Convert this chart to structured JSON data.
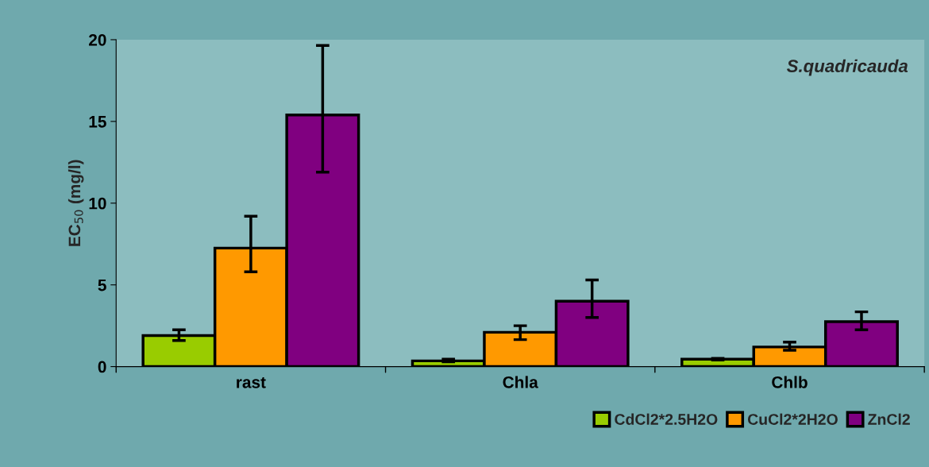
{
  "chart_data": {
    "type": "bar",
    "ylabel": "EC$_{50}$ (mg/l)",
    "annotations": [
      "S.quadricauda"
    ],
    "categories": [
      "rast",
      "Chla",
      "Chlb"
    ],
    "series": [
      {
        "name": "CdCl2*2.5H2O",
        "color": "#99cc00",
        "values": [
          1.9,
          0.35,
          0.45
        ],
        "errors": [
          [
            1.6,
            2.25
          ],
          [
            0.3,
            0.45
          ],
          [
            0.4,
            0.5
          ]
        ]
      },
      {
        "name": "CuCl2*2H2O",
        "color": "#ff9900",
        "values": [
          7.25,
          2.1,
          1.2
        ],
        "errors": [
          [
            5.8,
            9.2
          ],
          [
            1.65,
            2.5
          ],
          [
            1.0,
            1.5
          ]
        ]
      },
      {
        "name": "ZnCl2",
        "color": "#800080",
        "values": [
          15.4,
          4.0,
          2.75
        ],
        "errors": [
          [
            11.9,
            19.65
          ],
          [
            3.0,
            5.3
          ],
          [
            2.25,
            3.35
          ]
        ]
      }
    ],
    "ylim": [
      0,
      20
    ],
    "yticks": [
      0,
      5,
      10,
      15,
      20
    ],
    "grid": false,
    "legend": "bottom right"
  }
}
